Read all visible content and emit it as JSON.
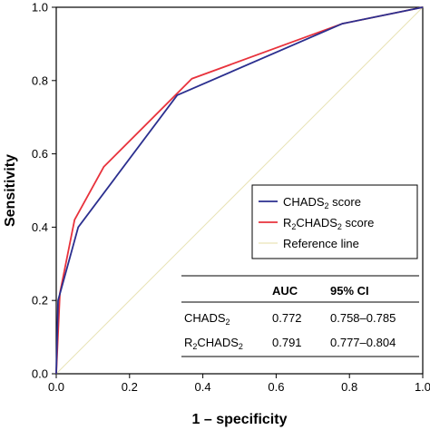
{
  "chart_data": {
    "type": "line",
    "xlabel": "1 – specificity",
    "ylabel": "Sensitivity",
    "xlim": [
      0,
      1
    ],
    "ylim": [
      0,
      1
    ],
    "xticks": [
      "0.0",
      "0.2",
      "0.4",
      "0.6",
      "0.8",
      "1.0"
    ],
    "yticks": [
      "0.0",
      "0.2",
      "0.4",
      "0.6",
      "0.8",
      "1.0"
    ],
    "grid": false,
    "legend_position": "center-right",
    "series": [
      {
        "name": "CHADS",
        "name_sub": "2",
        "name_suffix": " score",
        "color": "#2b2f8f",
        "x": [
          0,
          0.005,
          0.06,
          0.33,
          0.78,
          1.0
        ],
        "y": [
          0,
          0.2,
          0.4,
          0.76,
          0.955,
          1.0
        ]
      },
      {
        "name": "R",
        "name_sub": "2",
        "name_suffix": "CHADS",
        "name_sub2": "2",
        "name_suffix2": " score",
        "color": "#e8323c",
        "x": [
          0,
          0.01,
          0.05,
          0.13,
          0.37,
          0.78,
          1.0
        ],
        "y": [
          0,
          0.22,
          0.42,
          0.565,
          0.805,
          0.955,
          1.0
        ]
      },
      {
        "name": "Reference line",
        "color": "#e9e3b6",
        "x": [
          0,
          1
        ],
        "y": [
          0,
          1
        ]
      }
    ],
    "table": {
      "header": [
        "",
        "AUC",
        "95% CI"
      ],
      "rows": [
        {
          "label": "CHADS",
          "label_sub": "2",
          "auc": "0.772",
          "ci": "0.758–0.785"
        },
        {
          "label": "R",
          "label_sub": "2",
          "label_suffix": "CHADS",
          "label_sub2": "2",
          "auc": "0.791",
          "ci": "0.777–0.804"
        }
      ]
    }
  }
}
